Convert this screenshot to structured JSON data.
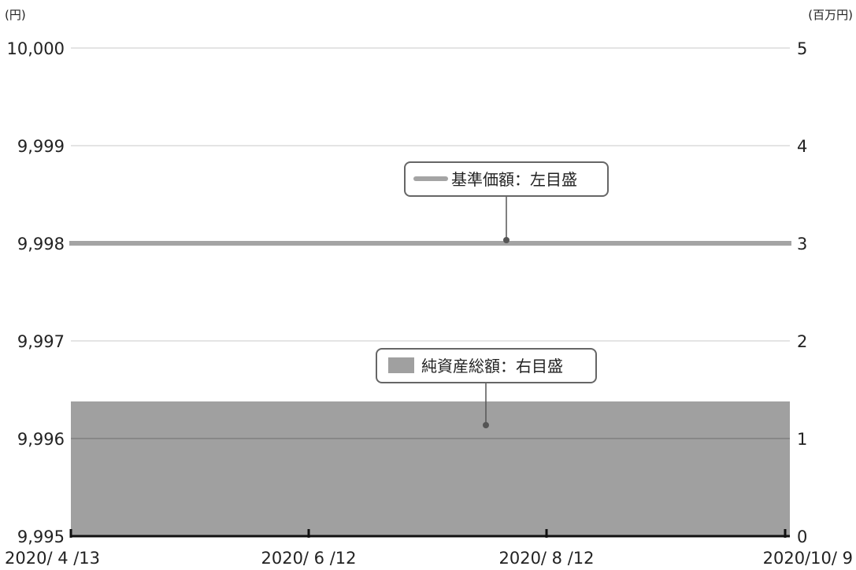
{
  "chart_data": {
    "type": "area+line",
    "x_tick_labels": [
      "2020/ 4 /13",
      "2020/ 6 /12",
      "2020/ 8 /12",
      "2020/10/ 9"
    ],
    "left_axis": {
      "unit_label": "(円)",
      "tick_labels": [
        "10,000",
        "9,999",
        "9,998",
        "9,997",
        "9,996",
        "9,995"
      ],
      "ylim": [
        9995,
        10000
      ]
    },
    "right_axis": {
      "unit_label": "(百万円)",
      "tick_labels": [
        "5",
        "4",
        "3",
        "2",
        "1",
        "0"
      ],
      "ylim": [
        0,
        5
      ]
    },
    "series": [
      {
        "name": "基準価額：左目盛",
        "kind": "line",
        "axis": "left",
        "color": "#a4a4a4",
        "x": [
          "2020/4/13",
          "2020/10/9"
        ],
        "values": [
          9998,
          9998
        ]
      },
      {
        "name": "純資産総額：右目盛",
        "kind": "area",
        "axis": "right",
        "color": "#a0a0a0",
        "x": [
          "2020/4/13",
          "2020/10/9"
        ],
        "values": [
          1.38,
          1.38
        ]
      }
    ],
    "grid": true
  }
}
